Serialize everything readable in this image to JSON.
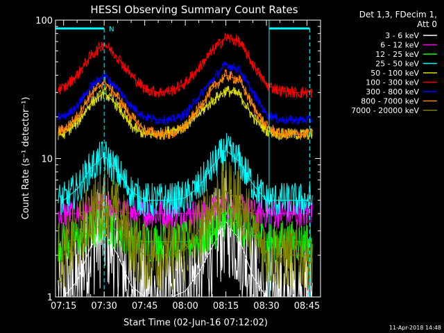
{
  "chart_data": {
    "type": "line",
    "title": "HESSI Observing Summary Count Rates",
    "xlabel": "Start Time (02-Jun-16 07:12:02)",
    "ylabel": "Count Rate (s⁻¹ detector⁻¹)",
    "yscale": "log",
    "ylim": [
      1,
      100
    ],
    "xlim": [
      "07:12",
      "08:50"
    ],
    "x_ticks": [
      "07:15",
      "07:30",
      "07:45",
      "08:00",
      "08:15",
      "08:30",
      "08:45"
    ],
    "y_ticks": [
      "1",
      "10",
      "100"
    ],
    "grid": false,
    "legend_position": "outside-right",
    "legend_header": [
      "Det 1,3, FDecim 1,",
      "Att 0"
    ],
    "footer_date": "11-Apr-2018 14:48",
    "bar_marker": "N",
    "x": [
      "07:15",
      "07:20",
      "07:25",
      "07:30",
      "07:35",
      "07:40",
      "07:45",
      "07:50",
      "07:55",
      "08:00",
      "08:05",
      "08:10",
      "08:15",
      "08:20",
      "08:25",
      "08:30",
      "08:35",
      "08:40",
      "08:45"
    ],
    "series": [
      {
        "name": "3 - 6 keV",
        "color": "#ffffff",
        "values": [
          1.0,
          1.3,
          2.3,
          3.0,
          2.0,
          1.2,
          1.0,
          1.0,
          1.0,
          1.1,
          1.5,
          2.3,
          3.5,
          2.6,
          1.4,
          1.0,
          1.0,
          1.0,
          1.0
        ]
      },
      {
        "name": "6 - 12 keV",
        "color": "#ff00ff",
        "values": [
          4.0,
          4.0,
          4.2,
          4.5,
          4.2,
          4.0,
          4.0,
          4.0,
          4.0,
          4.0,
          4.0,
          4.2,
          4.5,
          4.4,
          4.0,
          4.0,
          4.0,
          4.0,
          4.0
        ]
      },
      {
        "name": "12 - 25 keV",
        "color": "#00ff00",
        "values": [
          2.5,
          2.6,
          3.0,
          3.4,
          3.0,
          2.6,
          2.5,
          2.5,
          2.5,
          2.5,
          2.6,
          3.0,
          3.6,
          3.4,
          2.8,
          2.5,
          2.5,
          2.5,
          2.5
        ]
      },
      {
        "name": "25 - 50 keV",
        "color": "#00ffff",
        "values": [
          5.0,
          6.0,
          8.5,
          10.5,
          8.0,
          5.8,
          5.0,
          5.0,
          5.0,
          5.2,
          6.2,
          8.8,
          11.5,
          9.5,
          6.5,
          5.0,
          5.0,
          5.0,
          5.0
        ]
      },
      {
        "name": "50 - 100 keV",
        "color": "#e0e000",
        "values": [
          15,
          18,
          25,
          30,
          24,
          17,
          15,
          15,
          16,
          17,
          21,
          26,
          31,
          29,
          20,
          16,
          15,
          15,
          15
        ]
      },
      {
        "name": "100 - 300 keV",
        "color": "#ff0000",
        "values": [
          32,
          40,
          55,
          68,
          54,
          40,
          32,
          30,
          31,
          35,
          45,
          60,
          75,
          70,
          48,
          34,
          31,
          30,
          30
        ]
      },
      {
        "name": "300 - 800 keV",
        "color": "#0000ff",
        "values": [
          20,
          24,
          33,
          40,
          32,
          24,
          20,
          19,
          19,
          21,
          28,
          37,
          48,
          44,
          30,
          21,
          19,
          19,
          19
        ]
      },
      {
        "name": "800 - 7000 keV",
        "color": "#ff8800",
        "values": [
          16,
          20,
          29,
          36,
          28,
          20,
          16,
          15,
          15,
          17,
          23,
          32,
          40,
          37,
          24,
          17,
          15,
          15,
          15
        ]
      },
      {
        "name": "7000 - 20000 keV",
        "color": "#808000",
        "values": [
          2.0,
          2.6,
          4.0,
          5.0,
          3.8,
          2.5,
          2.0,
          2.0,
          2.0,
          2.2,
          3.0,
          4.5,
          5.8,
          5.0,
          3.0,
          2.1,
          2.0,
          2.0,
          2.0
        ]
      }
    ],
    "saa_bars": [
      {
        "start": "07:12",
        "end": "07:30"
      },
      {
        "start": "08:31",
        "end": "08:46"
      }
    ],
    "dashed_lines": [
      "07:30",
      "08:46"
    ],
    "solid_lines": [
      "08:31"
    ]
  }
}
